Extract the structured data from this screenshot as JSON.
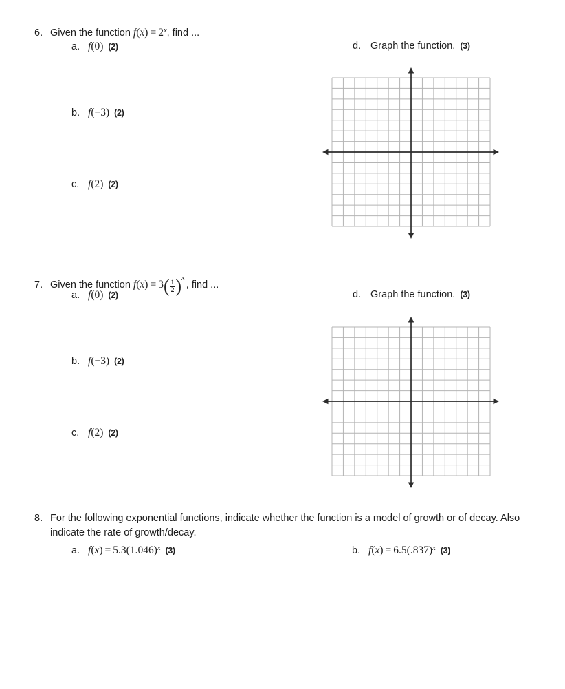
{
  "page": {
    "background": "#ffffff",
    "text_color": "#1f1f1f"
  },
  "graph": {
    "columns": 14,
    "rows": 14,
    "grid_color": "#b4b4b4",
    "axis_color": "#2d2d2d"
  },
  "q6": {
    "number": "6.",
    "prompt_prefix": "Given the function",
    "formula": {
      "func": "f",
      "open": "(",
      "var": "x",
      "close": ")",
      "eq": "=",
      "base": "2",
      "sup": "x"
    },
    "prompt_suffix": ", find ...",
    "parts": {
      "a": {
        "label": "a.",
        "func": "f",
        "arg": "(0)",
        "points": "(2)"
      },
      "b": {
        "label": "b.",
        "func": "f",
        "arg": "(−3)",
        "points": "(2)"
      },
      "c": {
        "label": "c.",
        "func": "f",
        "arg": "(2)",
        "points": "(2)"
      },
      "d": {
        "label": "d.",
        "text": "Graph the function.",
        "points": "(3)"
      }
    }
  },
  "q7": {
    "number": "7.",
    "prompt_prefix": "Given the function",
    "formula": {
      "func": "f",
      "open": "(",
      "var": "x",
      "close": ")",
      "eq": "=",
      "coef": "3",
      "paren_open": "(",
      "num": "1",
      "den": "2",
      "paren_close": ")",
      "sup": "x"
    },
    "prompt_suffix": ", find ...",
    "parts": {
      "a": {
        "label": "a.",
        "func": "f",
        "arg": "(0)",
        "points": "(2)"
      },
      "b": {
        "label": "b.",
        "func": "f",
        "arg": "(−3)",
        "points": "(2)"
      },
      "c": {
        "label": "c.",
        "func": "f",
        "arg": "(2)",
        "points": "(2)"
      },
      "d": {
        "label": "d.",
        "text": "Graph the function.",
        "points": "(3)"
      }
    }
  },
  "q8": {
    "number": "8.",
    "line1": "For the following exponential functions, indicate whether the function is a model of growth or of decay. Also",
    "line2": "indicate the rate of growth/decay.",
    "parts": {
      "a": {
        "label": "a.",
        "func": "f",
        "open": "(",
        "var": "x",
        "close": ")",
        "eq": "=",
        "body": "5.3(1.046)",
        "sup": "x",
        "points": "(3)"
      },
      "b": {
        "label": "b.",
        "func": "f",
        "open": "(",
        "var": "x",
        "close": ")",
        "eq": "=",
        "body": "6.5(.837)",
        "sup": "x",
        "points": "(3)"
      }
    }
  }
}
